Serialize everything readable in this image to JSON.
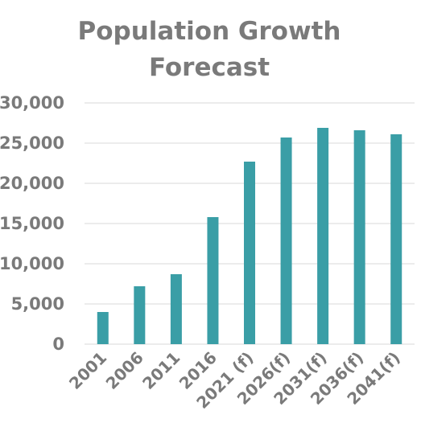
{
  "chart_data": {
    "type": "bar",
    "title_lines": [
      "Population Growth",
      "Forecast"
    ],
    "categories": [
      "2001",
      "2006",
      "2011",
      "2016",
      "2021 (f)",
      "2026(f)",
      "2031(f)",
      "2036(f)",
      "2041(f)"
    ],
    "values": [
      4000,
      7200,
      8700,
      15800,
      22700,
      25700,
      26900,
      26600,
      26100
    ],
    "yticks": [
      "0",
      "5,000",
      "10,000",
      "15,000",
      "20,000",
      "25,000",
      "30,000"
    ],
    "ylim": [
      0,
      30000
    ],
    "grid": true,
    "legend": "none",
    "bar_color": "#3a9ea6"
  }
}
